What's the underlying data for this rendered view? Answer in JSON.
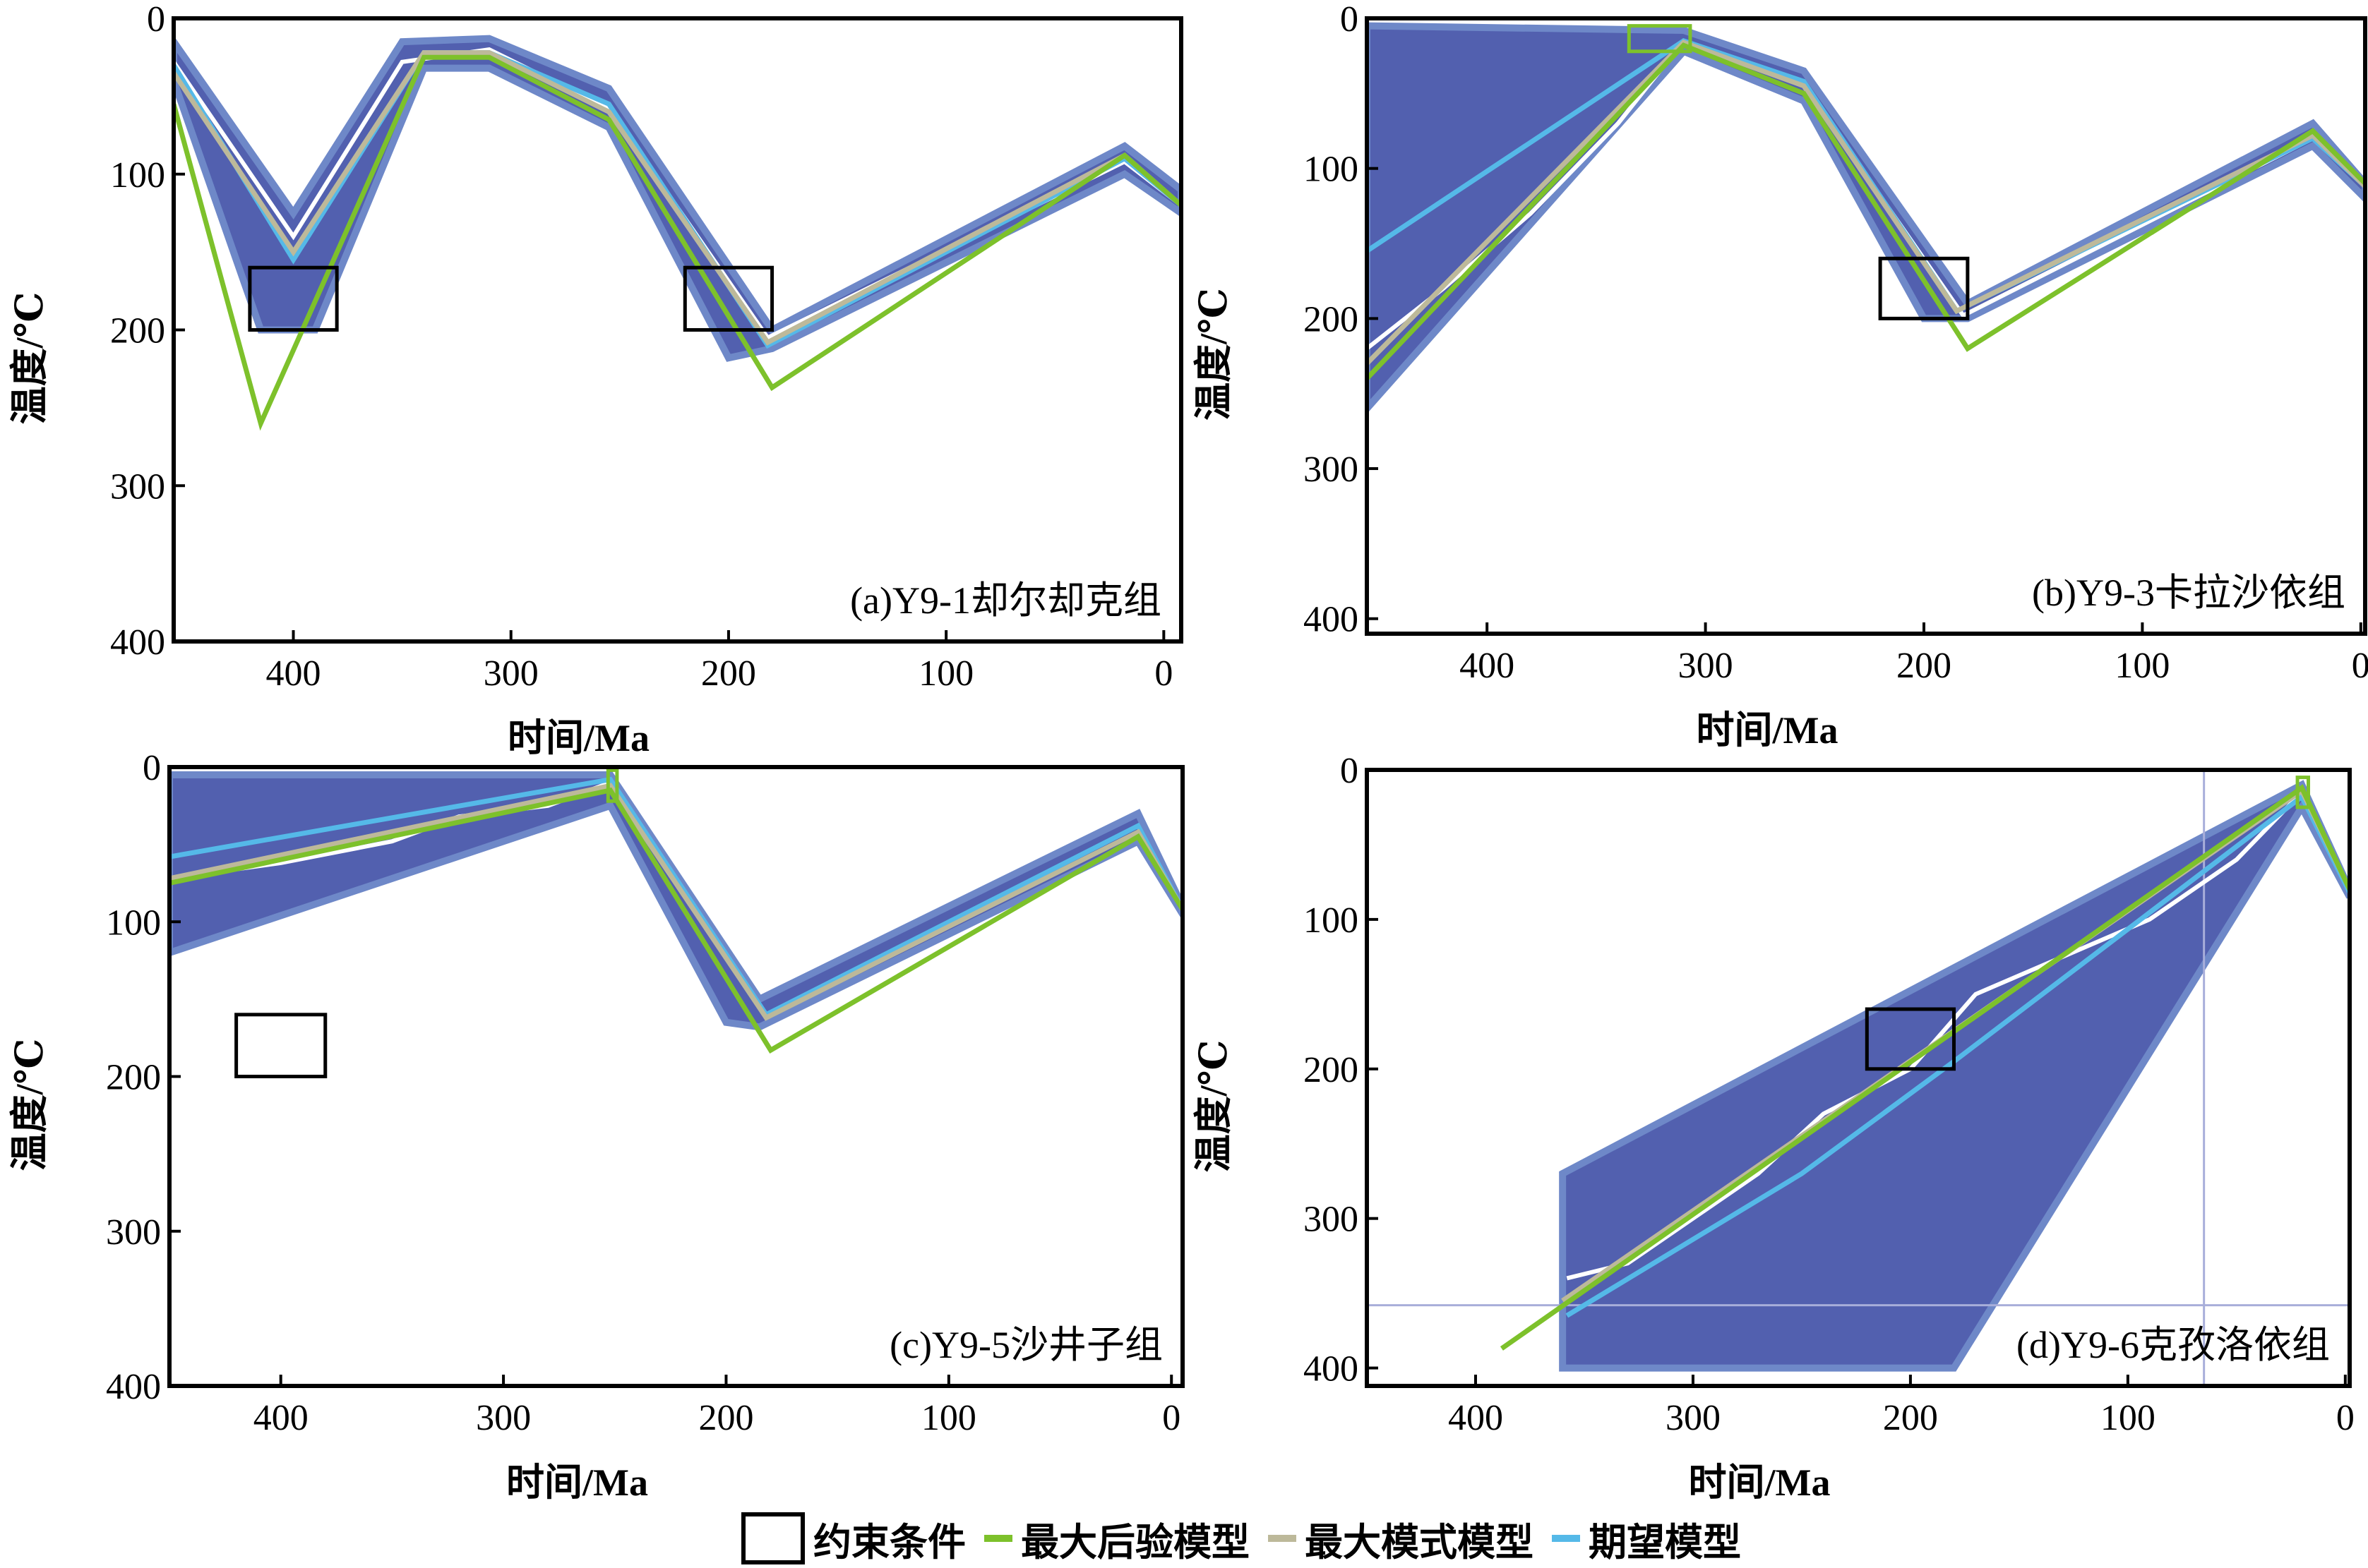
{
  "chart_data": [
    {
      "id": "a",
      "type": "line",
      "title": "(a)Y9-1却尔却克组",
      "xlabel": "时间/Ma",
      "ylabel": "温度/℃",
      "xlim": [
        455,
        -8
      ],
      "ylim": [
        0,
        400
      ],
      "xticks": [
        400,
        300,
        200,
        100,
        0
      ],
      "yticks": [
        0,
        100,
        200,
        300,
        400
      ],
      "constraints": [
        {
          "x0": 420,
          "x1": 380,
          "y0": 160,
          "y1": 200,
          "color": "#000000"
        },
        {
          "x0": 220,
          "x1": 180,
          "y0": 160,
          "y1": 200,
          "color": "#000000"
        }
      ],
      "envelope": {
        "upper": [
          [
            455,
            15
          ],
          [
            400,
            125
          ],
          [
            350,
            15
          ],
          [
            310,
            13
          ],
          [
            255,
            45
          ],
          [
            180,
            200
          ],
          [
            18,
            82
          ],
          [
            -8,
            110
          ]
        ],
        "lower": [
          [
            455,
            40
          ],
          [
            415,
            200
          ],
          [
            390,
            200
          ],
          [
            340,
            32
          ],
          [
            310,
            32
          ],
          [
            255,
            70
          ],
          [
            200,
            218
          ],
          [
            180,
            212
          ],
          [
            18,
            100
          ],
          [
            -8,
            125
          ]
        ]
      },
      "series": [
        {
          "name": "最大后验模型",
          "color": "#7DC12B",
          "points": [
            [
              455,
              55
            ],
            [
              415,
              260
            ],
            [
              340,
              25
            ],
            [
              310,
              25
            ],
            [
              255,
              65
            ],
            [
              180,
              237
            ],
            [
              18,
              88
            ],
            [
              -8,
              120
            ]
          ]
        },
        {
          "name": "最大模式模型",
          "color": "#BDB99A",
          "points": [
            [
              455,
              35
            ],
            [
              400,
              150
            ],
            [
              340,
              22
            ],
            [
              310,
              22
            ],
            [
              255,
              60
            ],
            [
              182,
              208
            ],
            [
              18,
              88
            ],
            [
              -8,
              120
            ]
          ]
        },
        {
          "name": "期望模型",
          "color": "#55B9E8",
          "points": [
            [
              455,
              30
            ],
            [
              400,
              155
            ],
            [
              340,
              22
            ],
            [
              310,
              22
            ],
            [
              255,
              55
            ],
            [
              182,
              210
            ],
            [
              18,
              90
            ],
            [
              -8,
              120
            ]
          ]
        },
        {
          "name": "white",
          "color": "#FFFFFF",
          "points": [
            [
              455,
              28
            ],
            [
              400,
              140
            ],
            [
              350,
              28
            ],
            [
              310,
              20
            ],
            [
              255,
              58
            ],
            [
              182,
              205
            ],
            [
              18,
              92
            ],
            [
              -8,
              120
            ]
          ]
        }
      ]
    },
    {
      "id": "b",
      "type": "line",
      "title": "(b)Y9-3卡拉沙依组",
      "xlabel": "时间/Ma",
      "ylabel": "温度/℃",
      "xlim": [
        455,
        -2
      ],
      "ylim": [
        0,
        410
      ],
      "xticks": [
        400,
        300,
        200,
        100,
        0
      ],
      "yticks": [
        0,
        100,
        200,
        300,
        400
      ],
      "constraints": [
        {
          "x0": 335,
          "x1": 307,
          "y0": 5,
          "y1": 22,
          "color": "#7DC12B"
        },
        {
          "x0": 220,
          "x1": 180,
          "y0": 160,
          "y1": 200,
          "color": "#000000"
        }
      ],
      "envelope": {
        "upper": [
          [
            455,
            5
          ],
          [
            310,
            8
          ],
          [
            255,
            35
          ],
          [
            180,
            190
          ],
          [
            22,
            70
          ],
          [
            -2,
            110
          ]
        ],
        "lower": [
          [
            455,
            260
          ],
          [
            310,
            22
          ],
          [
            255,
            55
          ],
          [
            200,
            200
          ],
          [
            180,
            200
          ],
          [
            22,
            85
          ],
          [
            -2,
            120
          ]
        ]
      },
      "series": [
        {
          "name": "最大后验模型",
          "color": "#7DC12B",
          "points": [
            [
              455,
              240
            ],
            [
              310,
              18
            ],
            [
              255,
              50
            ],
            [
              180,
              220
            ],
            [
              22,
              75
            ],
            [
              -2,
              110
            ]
          ]
        },
        {
          "name": "最大模式模型",
          "color": "#BDB99A",
          "points": [
            [
              455,
              230
            ],
            [
              310,
              16
            ],
            [
              255,
              45
            ],
            [
              185,
              195
            ],
            [
              22,
              78
            ],
            [
              -2,
              112
            ]
          ]
        },
        {
          "name": "期望模型",
          "color": "#55B9E8",
          "points": [
            [
              455,
              155
            ],
            [
              310,
              15
            ],
            [
              255,
              42
            ],
            [
              185,
              195
            ],
            [
              22,
              80
            ],
            [
              -2,
              112
            ]
          ]
        },
        {
          "name": "white",
          "color": "#FFFFFF",
          "points": [
            [
              455,
              220
            ],
            [
              420,
              180
            ],
            [
              380,
              130
            ],
            [
              340,
              70
            ],
            [
              310,
              15
            ],
            [
              255,
              45
            ],
            [
              182,
              198
            ],
            [
              22,
              80
            ],
            [
              -2,
              112
            ]
          ]
        }
      ]
    },
    {
      "id": "c",
      "type": "line",
      "title": "(c)Y9-5沙井子组",
      "xlabel": "时间/Ma",
      "ylabel": "温度/℃",
      "xlim": [
        450,
        -5
      ],
      "ylim": [
        0,
        400
      ],
      "xticks": [
        400,
        300,
        200,
        100,
        0
      ],
      "yticks": [
        0,
        100,
        200,
        300,
        400
      ],
      "constraints": [
        {
          "x0": 420,
          "x1": 380,
          "y0": 160,
          "y1": 200,
          "color": "#000000"
        },
        {
          "x0": 253,
          "x1": 249,
          "y0": 2,
          "y1": 22,
          "color": "#7DC12B"
        }
      ],
      "envelope": {
        "upper": [
          [
            450,
            5
          ],
          [
            252,
            5
          ],
          [
            185,
            150
          ],
          [
            15,
            30
          ],
          [
            -5,
            90
          ]
        ],
        "lower": [
          [
            450,
            120
          ],
          [
            252,
            25
          ],
          [
            200,
            165
          ],
          [
            185,
            168
          ],
          [
            15,
            48
          ],
          [
            -5,
            95
          ]
        ]
      },
      "series": [
        {
          "name": "最大后验模型",
          "color": "#7DC12B",
          "points": [
            [
              450,
              75
            ],
            [
              252,
              15
            ],
            [
              180,
              183
            ],
            [
              15,
              45
            ],
            [
              -5,
              92
            ]
          ]
        },
        {
          "name": "最大模式模型",
          "color": "#BDB99A",
          "points": [
            [
              450,
              72
            ],
            [
              252,
              12
            ],
            [
              182,
              162
            ],
            [
              15,
              42
            ],
            [
              -5,
              92
            ]
          ]
        },
        {
          "name": "期望模型",
          "color": "#55B9E8",
          "points": [
            [
              450,
              58
            ],
            [
              252,
              8
            ],
            [
              182,
              160
            ],
            [
              15,
              38
            ],
            [
              -5,
              92
            ]
          ]
        },
        {
          "name": "white",
          "color": "#FFFFFF",
          "points": [
            [
              450,
              72
            ],
            [
              400,
              62
            ],
            [
              350,
              48
            ],
            [
              320,
              32
            ],
            [
              280,
              25
            ],
            [
              252,
              10
            ],
            [
              182,
              162
            ],
            [
              15,
              42
            ],
            [
              -5,
              92
            ]
          ]
        }
      ]
    },
    {
      "id": "d",
      "type": "line",
      "title": "(d)Y9-6克孜洛依组",
      "xlabel": "时间/Ma",
      "ylabel": "温度/℃",
      "xlim": [
        450,
        -2
      ],
      "ylim": [
        0,
        412
      ],
      "xticks": [
        400,
        300,
        200,
        100,
        0
      ],
      "yticks": [
        0,
        100,
        200,
        300,
        400
      ],
      "reference_lines": {
        "x": 65,
        "y": 358
      },
      "constraints": [
        {
          "x0": 220,
          "x1": 180,
          "y0": 160,
          "y1": 200,
          "color": "#000000"
        },
        {
          "x0": 22,
          "x1": 17,
          "y0": 5,
          "y1": 25,
          "color": "#7DC12B"
        }
      ],
      "envelope": {
        "upper": [
          [
            360,
            270
          ],
          [
            20,
            10
          ],
          [
            -2,
            80
          ]
        ],
        "lower": [
          [
            360,
            400
          ],
          [
            180,
            400
          ],
          [
            20,
            25
          ],
          [
            -2,
            85
          ]
        ]
      },
      "series": [
        {
          "name": "最大后验模型",
          "color": "#7DC12B",
          "points": [
            [
              388,
              387
            ],
            [
              20,
              12
            ],
            [
              -2,
              80
            ]
          ]
        },
        {
          "name": "最大模式模型",
          "color": "#BDB99A",
          "points": [
            [
              360,
              355
            ],
            [
              20,
              14
            ],
            [
              -2,
              80
            ]
          ]
        },
        {
          "name": "期望模型",
          "color": "#55B9E8",
          "points": [
            [
              358,
              365
            ],
            [
              250,
              270
            ],
            [
              180,
              195
            ],
            [
              20,
              18
            ],
            [
              -2,
              82
            ]
          ]
        },
        {
          "name": "white",
          "color": "#FFFFFF",
          "points": [
            [
              358,
              340
            ],
            [
              330,
              330
            ],
            [
              300,
              300
            ],
            [
              270,
              270
            ],
            [
              240,
              230
            ],
            [
              200,
              200
            ],
            [
              170,
              150
            ],
            [
              130,
              125
            ],
            [
              90,
              100
            ],
            [
              50,
              60
            ],
            [
              20,
              15
            ]
          ]
        }
      ]
    }
  ],
  "legend": {
    "items": [
      {
        "label": "约束条件",
        "kind": "box",
        "color": "#000000"
      },
      {
        "label": "最大后验模型",
        "kind": "line",
        "color": "#7DC12B"
      },
      {
        "label": "最大模式模型",
        "kind": "line",
        "color": "#BDB99A"
      },
      {
        "label": "期望模型",
        "kind": "line",
        "color": "#55B9E8"
      }
    ]
  },
  "colors": {
    "path_density": "#3F4FA6",
    "path_light": "#A8AEDA",
    "envelope_edge": "#6E88C8"
  }
}
